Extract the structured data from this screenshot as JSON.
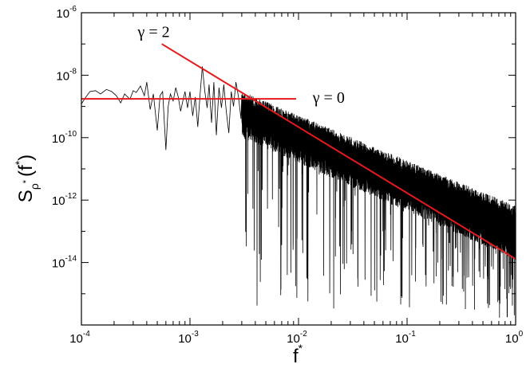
{
  "chart_data": {
    "type": "line",
    "xscale": "log",
    "yscale": "log",
    "xlim": [
      0.0001,
      1
    ],
    "ylim": [
      1e-16,
      1e-06
    ],
    "x_ticks": [
      {
        "base": "10",
        "exp": "-4"
      },
      {
        "base": "10",
        "exp": "-3"
      },
      {
        "base": "10",
        "exp": "-2"
      },
      {
        "base": "10",
        "exp": "-1"
      },
      {
        "base": "10",
        "exp": "0"
      }
    ],
    "y_ticks": [
      {
        "base": "10",
        "exp": "-14"
      },
      {
        "base": "10",
        "exp": "-12"
      },
      {
        "base": "10",
        "exp": "-10"
      },
      {
        "base": "10",
        "exp": "-8"
      },
      {
        "base": "10",
        "exp": "-6"
      }
    ],
    "xlabel": {
      "main": "f",
      "sup": "*"
    },
    "ylabel": {
      "S": "S",
      "sub": "ρ",
      "subsup": "*",
      "open": "(f",
      "sup": "*",
      "close": ")"
    },
    "series": [
      {
        "color": "#000000",
        "description": "power spectrum",
        "x": [
          0.0001,
          0.00011,
          0.00012,
          0.000135,
          0.00015,
          0.00017,
          0.00019,
          0.00021,
          0.00023,
          0.00025,
          0.00028,
          0.0003,
          0.00032,
          0.00035,
          0.00038,
          0.0004,
          0.00043,
          0.00046,
          0.0005,
          0.00053,
          0.00056,
          0.0006,
          0.00063,
          0.00066,
          0.0007,
          0.00074,
          0.00078,
          0.00082,
          0.00086,
          0.0009,
          0.00095,
          0.001,
          0.00106,
          0.00112,
          0.00118,
          0.00124,
          0.0013,
          0.00137,
          0.00144,
          0.0015,
          0.00158,
          0.00166,
          0.00175,
          0.00185,
          0.00195,
          0.00205,
          0.00216,
          0.00228,
          0.0024,
          0.00252,
          0.00265,
          0.0028,
          0.00295
        ],
        "y": [
          1.2e-09,
          2e-09,
          3e-09,
          3.2e-09,
          2.5e-09,
          3.5e-09,
          3e-09,
          2.2e-09,
          1.3e-09,
          2.5e-09,
          1.7e-09,
          3.2e-09,
          2.8e-09,
          4.5e-09,
          2.2e-09,
          6e-09,
          8e-10,
          2.5e-09,
          1.7e-10,
          2.2e-09,
          3e-09,
          4e-11,
          1e-09,
          2.5e-09,
          1.5e-09,
          4e-09,
          2e-09,
          7e-10,
          1.5e-09,
          3e-09,
          9e-10,
          3e-09,
          5e-10,
          2e-09,
          2.2e-10,
          2.5e-09,
          1.9e-08,
          3e-09,
          9e-10,
          5e-09,
          3e-10,
          6e-09,
          1.2e-10,
          4e-09,
          9e-10,
          5e-09,
          7e-10,
          1.4e-10,
          3e-09,
          1e-09,
          6e-09,
          2e-09,
          4e-10
        ],
        "dense_band": {
          "x_start": 0.003,
          "x_end": 1,
          "upper_at_start": 3e-09,
          "upper_slope": -1.45,
          "lower_at_start": 1e-10,
          "lower_slope": -1.55,
          "dips_min": 1e-16
        }
      },
      {
        "color": "#e41a1c",
        "description": "fit γ = 2",
        "x": [
          0.00055,
          1
        ],
        "y": [
          1e-07,
          1.3e-14
        ]
      },
      {
        "color": "#e41a1c",
        "description": "fit γ = 0",
        "x": [
          0.0001,
          0.0095
        ],
        "y": [
          1.75e-09,
          1.75e-09
        ]
      }
    ],
    "annotations": [
      {
        "text": "γ = 2",
        "x": 0.00033,
        "y": 2.5e-07
      },
      {
        "text": "γ = 0",
        "x": 0.0135,
        "y": 2e-09
      }
    ],
    "grid": false,
    "legend": "none"
  }
}
